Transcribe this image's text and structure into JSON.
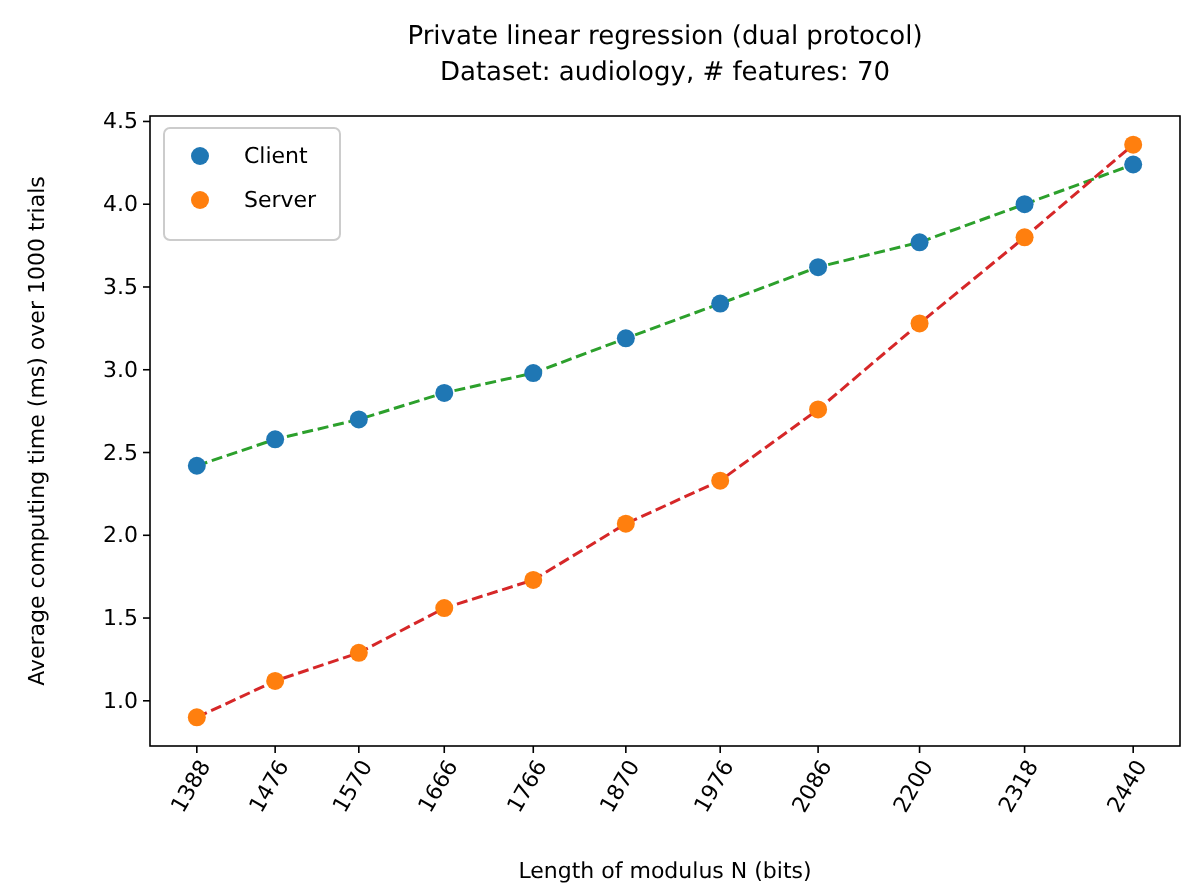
{
  "chart_data": {
    "type": "scatter",
    "title": "Private linear regression (dual protocol)",
    "subtitle": "Dataset: audiology, # features: 70",
    "xlabel": "Length of modulus N (bits)",
    "ylabel": "Average computing time (ms) over 1000 trials",
    "x": [
      1388,
      1476,
      1570,
      1666,
      1766,
      1870,
      1976,
      2086,
      2200,
      2318,
      2440
    ],
    "xlim": [
      1335.4,
      2492.6
    ],
    "xticks": [
      1388,
      1476,
      1570,
      1666,
      1766,
      1870,
      1976,
      2086,
      2200,
      2318,
      2440
    ],
    "ylim": [
      0.727,
      4.533
    ],
    "yticks": [
      {
        "value": 1.0,
        "label": "1.0"
      },
      {
        "value": 1.5,
        "label": "1.5"
      },
      {
        "value": 2.0,
        "label": "2.0"
      },
      {
        "value": 2.5,
        "label": "2.5"
      },
      {
        "value": 3.0,
        "label": "3.0"
      },
      {
        "value": 3.5,
        "label": "3.5"
      },
      {
        "value": 4.0,
        "label": "4.0"
      },
      {
        "value": 4.5,
        "label": "4.5"
      }
    ],
    "series": [
      {
        "type": "line",
        "color": "#2ca02c",
        "line_style": "dashed",
        "marker": "none",
        "values": [
          2.42,
          2.58,
          2.7,
          2.86,
          2.98,
          3.19,
          3.4,
          3.62,
          3.77,
          4.0,
          4.24
        ]
      },
      {
        "type": "line",
        "color": "#d62728",
        "line_style": "dashed",
        "marker": "none",
        "values": [
          0.9,
          1.12,
          1.29,
          1.56,
          1.73,
          2.07,
          2.33,
          2.76,
          3.28,
          3.8,
          4.36
        ]
      },
      {
        "name": "Client",
        "color": "#1f77b4",
        "marker": "circle",
        "values": [
          2.42,
          2.58,
          2.7,
          2.86,
          2.98,
          3.19,
          3.4,
          3.62,
          3.77,
          4.0,
          4.24
        ]
      },
      {
        "name": "Server",
        "color": "#ff7f0e",
        "marker": "circle",
        "values": [
          0.9,
          1.12,
          1.29,
          1.56,
          1.73,
          2.07,
          2.33,
          2.76,
          3.28,
          3.8,
          4.36
        ]
      }
    ],
    "legend": "top left",
    "grid": false
  }
}
